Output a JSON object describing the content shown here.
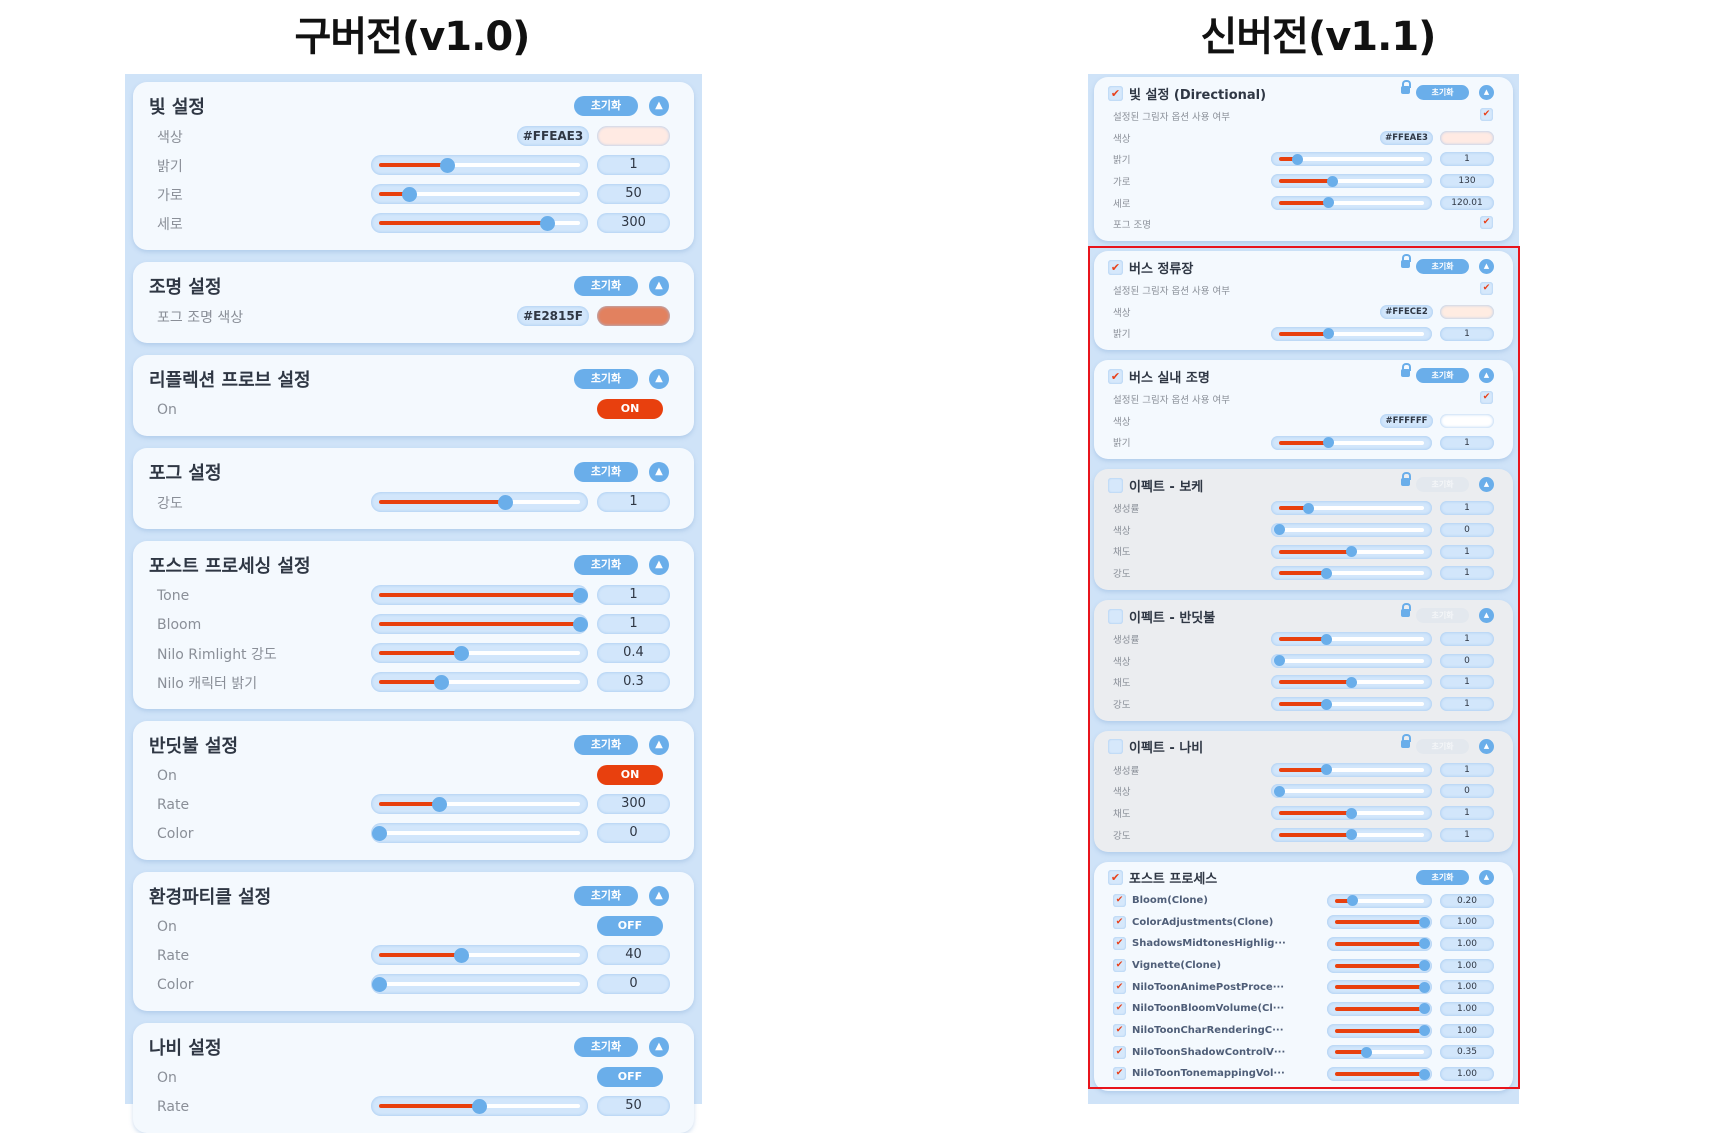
{
  "titles": {
    "old": "구버전(v1.0)",
    "new": "신버전(v1.1)"
  },
  "common": {
    "reset_label": "초기화",
    "arrow_glyph": "▲",
    "check_glyph": "✔"
  },
  "colors": {
    "accent_blue": "#6aaeea",
    "slider_fill": "#e8400e",
    "panel_bg": "#cfe3f8",
    "highlight_border": "#e8141c"
  },
  "old_version": {
    "sections": [
      {
        "title": "빛 설정",
        "rows": [
          {
            "type": "color",
            "label": "색상",
            "hex": "#FFEAE3",
            "swatch": "#FFEAE3"
          },
          {
            "type": "slider",
            "label": "밝기",
            "value": "1",
            "fill": 0.34
          },
          {
            "type": "slider",
            "label": "가로",
            "value": "50",
            "fill": 0.15
          },
          {
            "type": "slider",
            "label": "세로",
            "value": "300",
            "fill": 0.84
          }
        ]
      },
      {
        "title": "조명 설정",
        "rows": [
          {
            "type": "color",
            "label": "포그 조명 색상",
            "hex": "#E2815F",
            "swatch": "#E2815F"
          }
        ]
      },
      {
        "title": "리플렉션 프로브 설정",
        "rows": [
          {
            "type": "toggle",
            "label": "On",
            "state": "ON"
          }
        ]
      },
      {
        "title": "포그 설정",
        "rows": [
          {
            "type": "slider",
            "label": "강도",
            "value": "1",
            "fill": 0.63
          }
        ]
      },
      {
        "title": "포스트 프로세싱 설정",
        "rows": [
          {
            "type": "slider",
            "label": "Tone",
            "value": "1",
            "fill": 1.0
          },
          {
            "type": "slider",
            "label": "Bloom",
            "value": "1",
            "fill": 1.0
          },
          {
            "type": "slider",
            "label": "Nilo Rimlight 강도",
            "value": "0.4",
            "fill": 0.41
          },
          {
            "type": "slider",
            "label": "Nilo 캐릭터 밝기",
            "value": "0.3",
            "fill": 0.31
          }
        ]
      },
      {
        "title": "반딧불 설정",
        "rows": [
          {
            "type": "toggle",
            "label": "On",
            "state": "ON"
          },
          {
            "type": "slider",
            "label": "Rate",
            "value": "300",
            "fill": 0.3
          },
          {
            "type": "slider",
            "label": "Color",
            "value": "0",
            "fill": 0
          }
        ]
      },
      {
        "title": "환경파티클 설정",
        "rows": [
          {
            "type": "toggle",
            "label": "On",
            "state": "OFF"
          },
          {
            "type": "slider",
            "label": "Rate",
            "value": "40",
            "fill": 0.41
          },
          {
            "type": "slider",
            "label": "Color",
            "value": "0",
            "fill": 0
          }
        ]
      },
      {
        "title": "나비 설정",
        "rows": [
          {
            "type": "toggle",
            "label": "On",
            "state": "OFF"
          },
          {
            "type": "slider",
            "label": "Rate",
            "value": "50",
            "fill": 0.5
          }
        ]
      }
    ]
  },
  "new_version": {
    "sections": [
      {
        "title": "빛 설정 (Directional)",
        "enabled": true,
        "rows": [
          {
            "type": "check",
            "label": "설정된 그림자 옵션 사용 여부",
            "checked": true
          },
          {
            "type": "color",
            "label": "색상",
            "hex": "#FFEAE3",
            "swatch": "#FFEAE3"
          },
          {
            "type": "slider",
            "label": "밝기",
            "value": "1",
            "fill": 0.13
          },
          {
            "type": "slider",
            "label": "가로",
            "value": "130",
            "fill": 0.37
          },
          {
            "type": "slider",
            "label": "세로",
            "value": "120.01",
            "fill": 0.34
          },
          {
            "type": "check",
            "label": "포그 조명",
            "checked": true
          }
        ]
      },
      {
        "title": "버스 정류장",
        "enabled": true,
        "rows": [
          {
            "type": "check",
            "label": "설정된 그림자 옵션 사용 여부",
            "checked": true
          },
          {
            "type": "color",
            "label": "색상",
            "hex": "#FFECE2",
            "swatch": "#FFECE2"
          },
          {
            "type": "slider",
            "label": "밝기",
            "value": "1",
            "fill": 0.34
          }
        ]
      },
      {
        "title": "버스 실내 조명",
        "enabled": true,
        "rows": [
          {
            "type": "check",
            "label": "설정된 그림자 옵션 사용 여부",
            "checked": true
          },
          {
            "type": "color",
            "label": "색상",
            "hex": "#FFFFFF",
            "swatch": "#FFFFFF"
          },
          {
            "type": "slider",
            "label": "밝기",
            "value": "1",
            "fill": 0.34
          }
        ]
      },
      {
        "title": "이펙트 - 보케",
        "enabled": false,
        "rows": [
          {
            "type": "slider",
            "label": "생성률",
            "value": "1",
            "fill": 0.2
          },
          {
            "type": "slider",
            "label": "색상",
            "value": "0",
            "fill": 0
          },
          {
            "type": "slider",
            "label": "채도",
            "value": "1",
            "fill": 0.5
          },
          {
            "type": "slider",
            "label": "강도",
            "value": "1",
            "fill": 0.33
          }
        ]
      },
      {
        "title": "이펙트 - 반딧불",
        "enabled": false,
        "rows": [
          {
            "type": "slider",
            "label": "생성률",
            "value": "1",
            "fill": 0.33
          },
          {
            "type": "slider",
            "label": "색상",
            "value": "0",
            "fill": 0
          },
          {
            "type": "slider",
            "label": "채도",
            "value": "1",
            "fill": 0.5
          },
          {
            "type": "slider",
            "label": "강도",
            "value": "1",
            "fill": 0.33
          }
        ]
      },
      {
        "title": "이펙트 - 나비",
        "enabled": false,
        "rows": [
          {
            "type": "slider",
            "label": "생성률",
            "value": "1",
            "fill": 0.33
          },
          {
            "type": "slider",
            "label": "색상",
            "value": "0",
            "fill": 0
          },
          {
            "type": "slider",
            "label": "채도",
            "value": "1",
            "fill": 0.5
          },
          {
            "type": "slider",
            "label": "강도",
            "value": "1",
            "fill": 0.5
          }
        ]
      },
      {
        "title": "포스트 프로세스",
        "enabled": true,
        "nolock": true,
        "rows": [
          {
            "type": "subslider",
            "label": "Bloom(Clone)",
            "value": "0.20",
            "fill": 0.2,
            "checked": true
          },
          {
            "type": "subslider",
            "label": "ColorAdjustments(Clone)",
            "value": "1.00",
            "fill": 1.0,
            "checked": true
          },
          {
            "type": "subslider",
            "label": "ShadowsMidtonesHighlig···",
            "value": "1.00",
            "fill": 1.0,
            "checked": true
          },
          {
            "type": "subslider",
            "label": "Vignette(Clone)",
            "value": "1.00",
            "fill": 1.0,
            "checked": true
          },
          {
            "type": "subslider",
            "label": "NiloToonAnimePostProce···",
            "value": "1.00",
            "fill": 1.0,
            "checked": true
          },
          {
            "type": "subslider",
            "label": "NiloToonBloomVolume(Cl···",
            "value": "1.00",
            "fill": 1.0,
            "checked": true
          },
          {
            "type": "subslider",
            "label": "NiloToonCharRenderingC···",
            "value": "1.00",
            "fill": 1.0,
            "checked": true
          },
          {
            "type": "subslider",
            "label": "NiloToonShadowControlV···",
            "value": "0.35",
            "fill": 0.35,
            "checked": true
          },
          {
            "type": "subslider",
            "label": "NiloToonTonemappingVol···",
            "value": "1.00",
            "fill": 1.0,
            "checked": true
          }
        ]
      }
    ]
  }
}
